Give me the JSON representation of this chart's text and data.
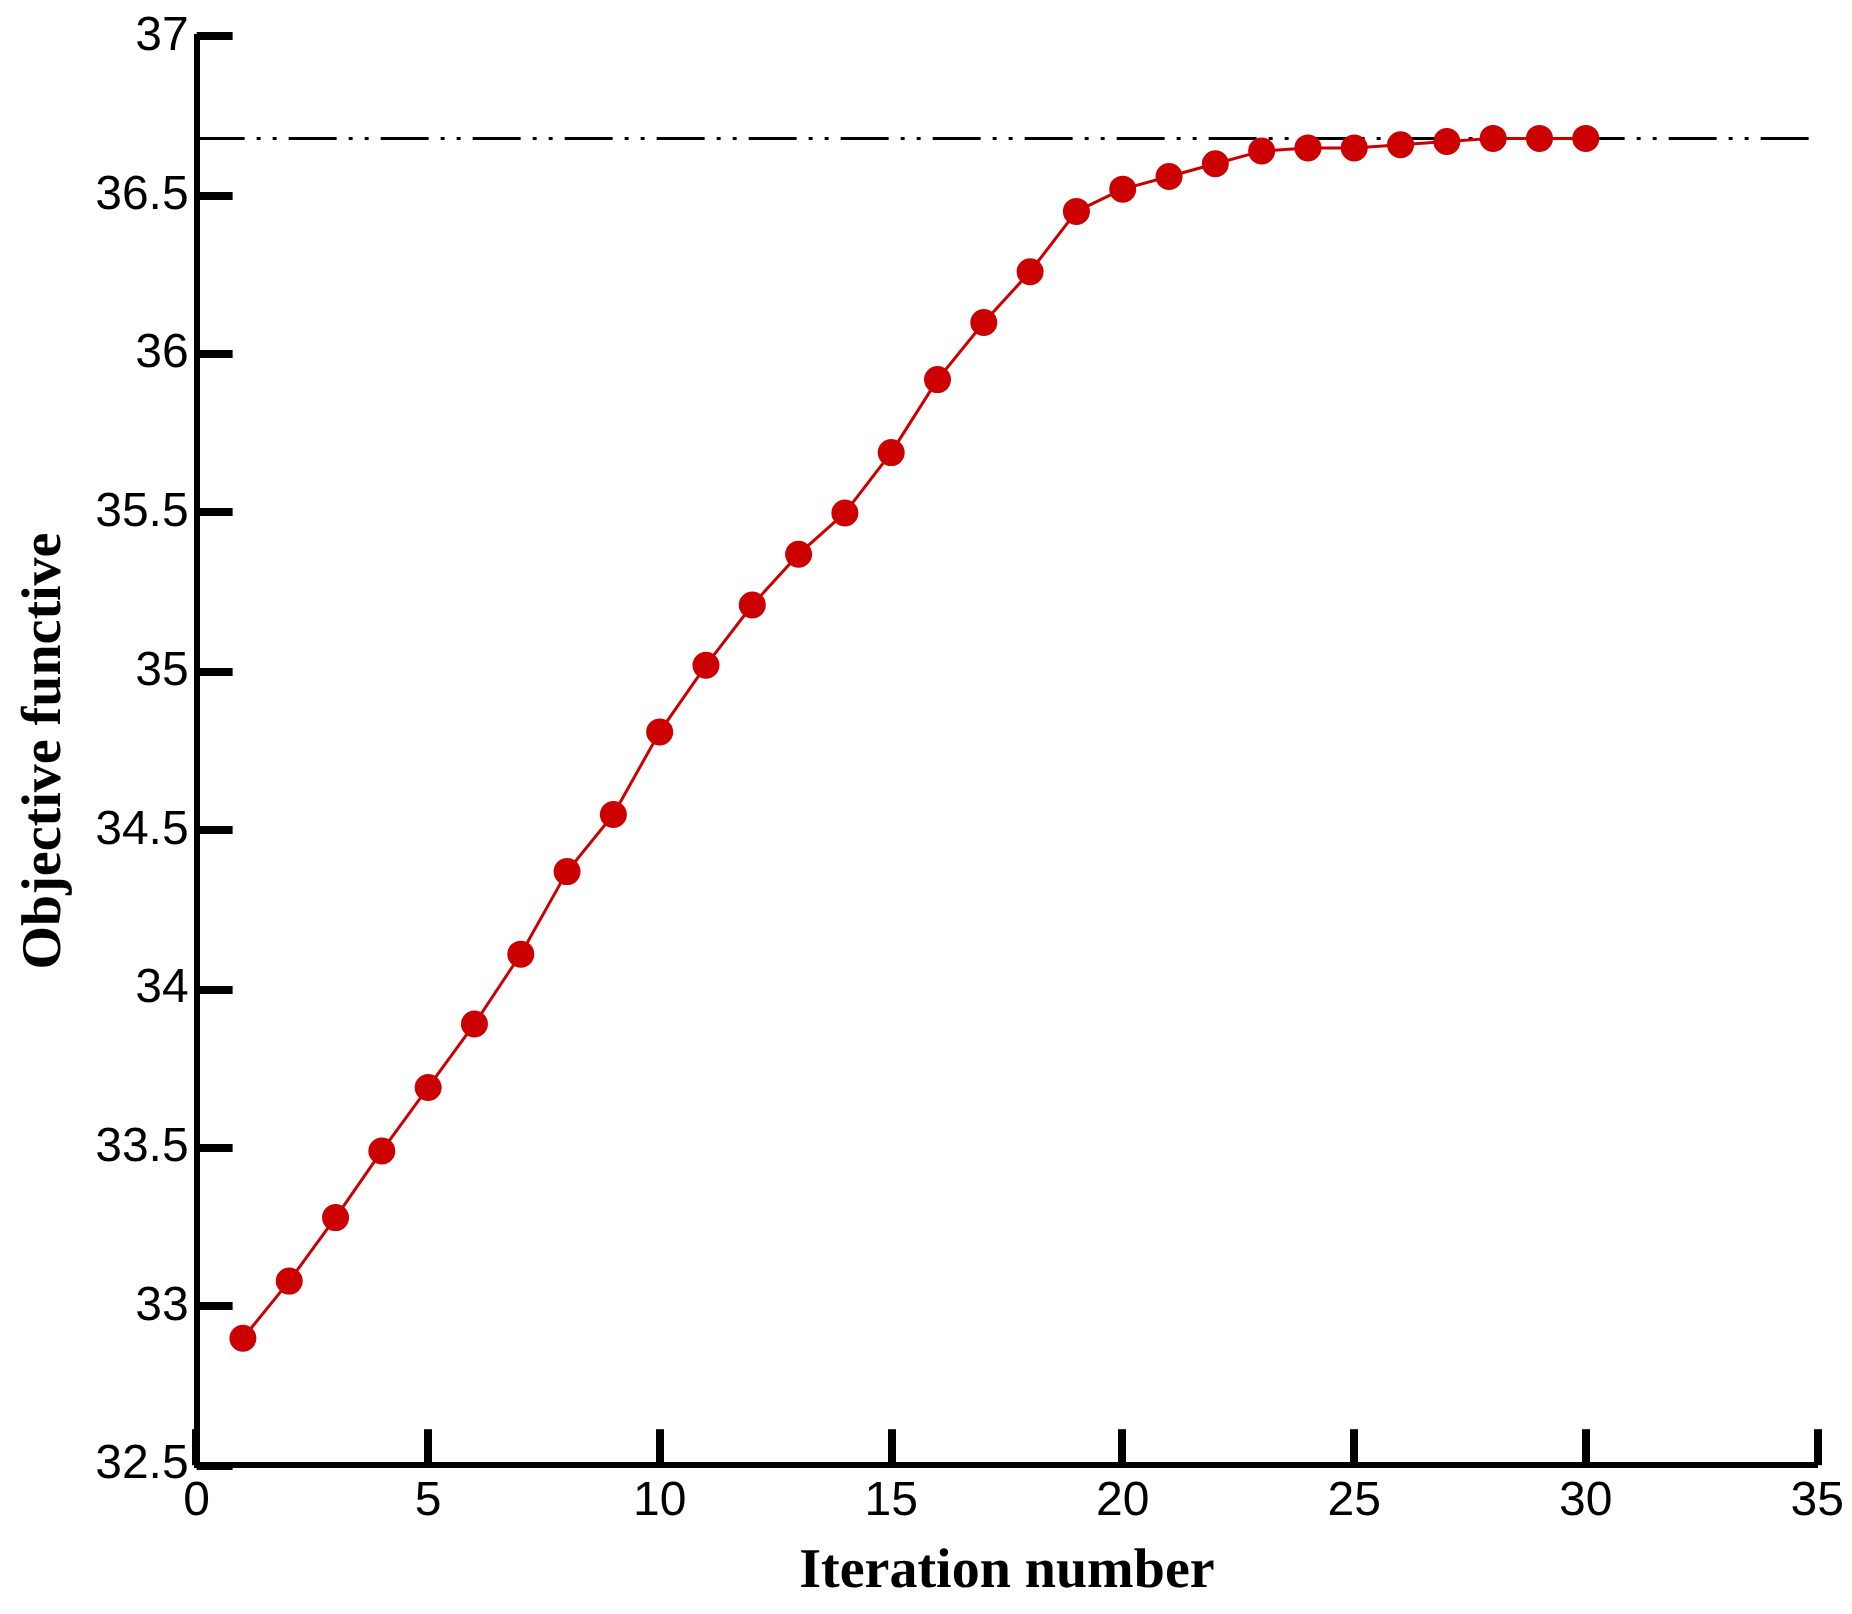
{
  "chart_data": {
    "type": "line",
    "xlabel": "Iteration number",
    "ylabel": "Objective functive",
    "x": [
      1,
      2,
      3,
      4,
      5,
      6,
      7,
      8,
      9,
      10,
      11,
      12,
      13,
      14,
      15,
      16,
      17,
      18,
      19,
      20,
      21,
      22,
      23,
      24,
      25,
      26,
      27,
      28,
      29,
      30
    ],
    "series": [
      {
        "color": "#cc0000",
        "values": [
          32.9,
          33.08,
          33.28,
          33.49,
          33.69,
          33.89,
          34.11,
          34.37,
          34.55,
          34.81,
          35.02,
          35.21,
          35.37,
          35.5,
          35.69,
          35.92,
          36.1,
          36.26,
          36.45,
          36.52,
          36.56,
          36.6,
          36.64,
          36.65,
          36.65,
          36.66,
          36.67,
          36.68,
          36.68,
          36.68
        ]
      }
    ],
    "marker": "circle",
    "line_style": "solid",
    "xlim": [
      0,
      35
    ],
    "xticks": [
      0,
      5,
      10,
      15,
      20,
      25,
      30,
      35
    ],
    "ylim": [
      32.5,
      37
    ],
    "yticks": [
      32.5,
      33,
      33.5,
      34,
      34.5,
      35,
      35.5,
      36,
      36.5,
      37
    ],
    "ref_lines": [
      {
        "axis": "y",
        "value": 36.68,
        "color": "#000000",
        "line_style": "dashed"
      }
    ],
    "grid": false,
    "legend": false
  }
}
